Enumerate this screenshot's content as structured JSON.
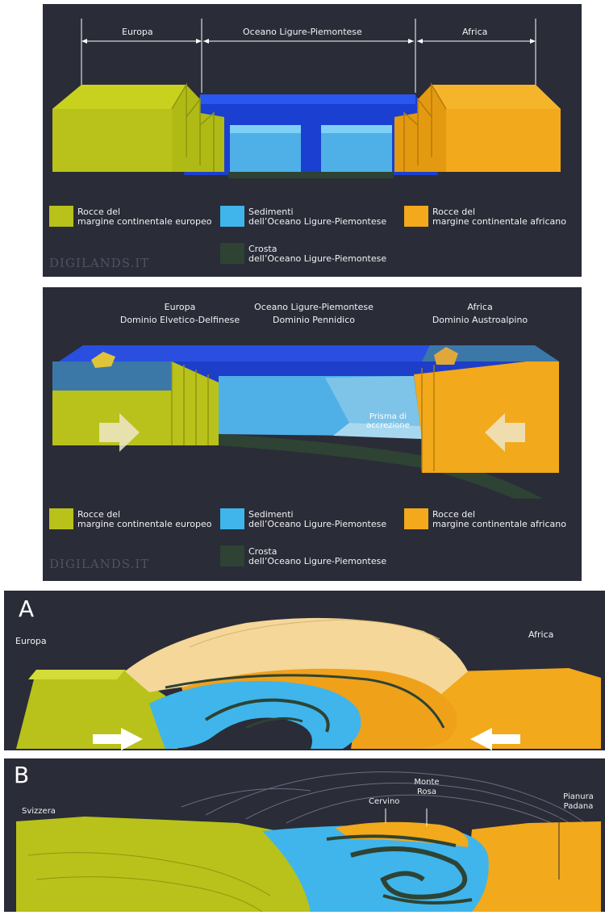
{
  "panel1": {
    "header": {
      "europa": "Europa",
      "oceano": "Oceano Ligure-Piemontese",
      "africa": "Africa"
    },
    "legend": [
      {
        "line1": "Rocce del",
        "line2": "margine continentale europeo",
        "color": "#b8c21a"
      },
      {
        "line1": "Sedimenti",
        "line2": "dell’Oceano Ligure-Piemontese",
        "color": "#3fb5ec"
      },
      {
        "line1": "Rocce del",
        "line2": "margine continentale africano",
        "color": "#f2a91b"
      },
      {
        "line1": "Crosta",
        "line2": "dell’Oceano Ligure-Piemontese",
        "color": "#2e4333"
      }
    ],
    "watermark": "DIGILANDS.IT"
  },
  "panel2": {
    "header": {
      "europa": "Europa",
      "europa_domain": "Dominio Elvetico-Delfinese",
      "oceano": "Oceano Ligure-Piemontese",
      "oceano_domain": "Dominio Pennidico",
      "africa": "Africa",
      "africa_domain": "Dominio Austroalpino"
    },
    "prisma_line1": "Prisma di",
    "prisma_line2": "accrezione",
    "legend": [
      {
        "line1": "Rocce del",
        "line2": "margine continentale europeo",
        "color": "#b8c21a"
      },
      {
        "line1": "Sedimenti",
        "line2": "dell’Oceano Ligure-Piemontese",
        "color": "#3fb5ec"
      },
      {
        "line1": "Rocce del",
        "line2": "margine continentale africano",
        "color": "#f2a91b"
      },
      {
        "line1": "Crosta",
        "line2": "dell’Oceano Ligure-Piemontese",
        "color": "#2e4333"
      }
    ],
    "watermark": "DIGILANDS.IT"
  },
  "panelA": {
    "letter": "A",
    "europa": "Europa",
    "africa": "Africa"
  },
  "panelB": {
    "letter": "B",
    "svizzera": "Svizzera",
    "cervino": "Cervino",
    "monte_rosa_line1": "Monte",
    "monte_rosa_line2": "Rosa",
    "pianura_line1": "Pianura",
    "pianura_line2": "Padana"
  },
  "colors": {
    "europe": "#b8c21a",
    "sediment": "#3fb5ec",
    "africa": "#f2a91b",
    "crust": "#2e4333",
    "ocean": "#1b3fd0",
    "panel_bg": "#2a2c38"
  }
}
